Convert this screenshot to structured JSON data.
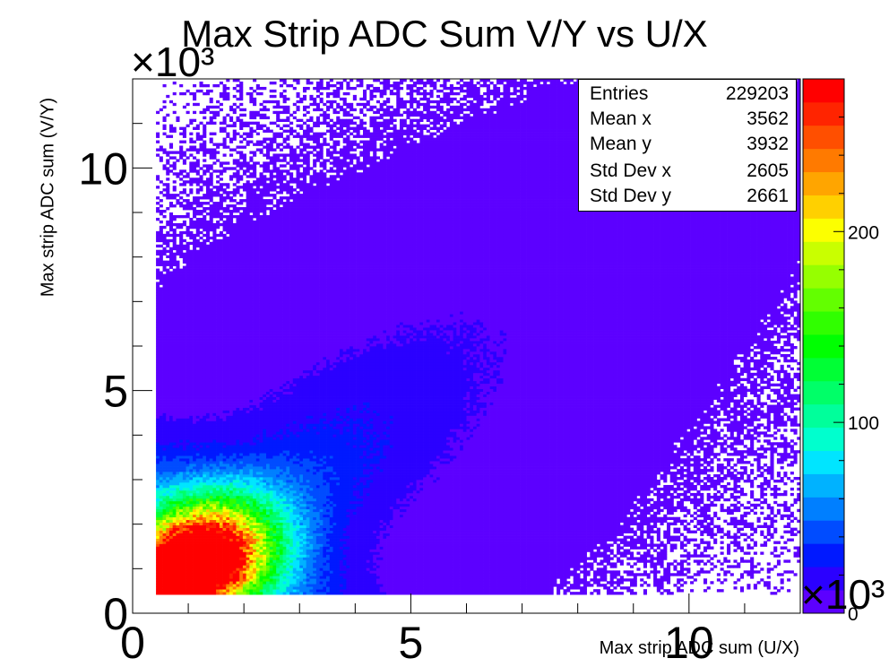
{
  "title": "Max Strip ADC Sum V/Y vs U/X",
  "stats": {
    "rows": [
      {
        "label": "Entries",
        "value": "229203"
      },
      {
        "label": "Mean x",
        "value": "3562"
      },
      {
        "label": "Mean y",
        "value": "3932"
      },
      {
        "label": "Std Dev x",
        "value": "2605"
      },
      {
        "label": "Std Dev y",
        "value": "2661"
      }
    ]
  },
  "chart_data": {
    "type": "heatmap",
    "title": "Max Strip ADC Sum V/Y vs U/X",
    "xlabel": "Max strip ADC sum (U/X)",
    "ylabel": "Max strip ADC sum (V/Y)",
    "x_multiplier": "×10³",
    "y_multiplier": "×10³",
    "z_multiplier": "×10³",
    "xlim": [
      0,
      12000
    ],
    "ylim": [
      0,
      12000
    ],
    "zlim": [
      0,
      280
    ],
    "x_ticks": [
      {
        "value": 0,
        "label": "0"
      },
      {
        "value": 5000,
        "label": "5"
      },
      {
        "value": 10000,
        "label": "10"
      }
    ],
    "y_ticks": [
      {
        "value": 0,
        "label": "0"
      },
      {
        "value": 5000,
        "label": "5"
      },
      {
        "value": 10000,
        "label": "10"
      }
    ],
    "z_ticks": [
      {
        "value": 0,
        "label": "0"
      },
      {
        "value": 100,
        "label": "100"
      },
      {
        "value": 200,
        "label": "200"
      }
    ],
    "entries": 229203,
    "mean_x": 3562,
    "mean_y": 3932,
    "std_dev_x": 2605,
    "std_dev_y": 2661,
    "distribution": {
      "shape": "diagonal band along x = y, densest near the origin",
      "peak": {
        "x": 800,
        "y": 1000,
        "count": 280
      },
      "x_min_populated": 400,
      "y_min_populated": 400
    },
    "palette": [
      "#5c00ff",
      "#2b00ff",
      "#0019ff",
      "#004cff",
      "#007fff",
      "#00b2ff",
      "#00e5ff",
      "#00ffce",
      "#00ff9b",
      "#00ff68",
      "#00ff35",
      "#00ff02",
      "#30ff00",
      "#63ff00",
      "#96ff00",
      "#c9ff00",
      "#fcff00",
      "#ffd000",
      "#ffa500",
      "#ff7a00",
      "#ff4f00",
      "#ff2400",
      "#ff0000"
    ],
    "grid": false,
    "legend": "none"
  }
}
